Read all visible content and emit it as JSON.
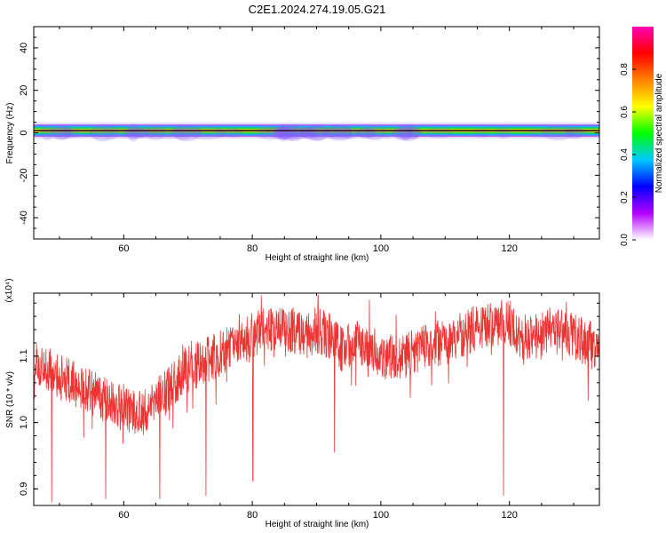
{
  "title": "C2E1.2024.274.19.05.G21",
  "chart_data": [
    {
      "type": "heatmap",
      "xlabel": "Height of straight line (km)",
      "ylabel": "Frequency (Hz)",
      "xlim": [
        46,
        134
      ],
      "ylim": [
        -50,
        50
      ],
      "xticks": [
        60,
        80,
        100,
        120
      ],
      "yticks": [
        40,
        20,
        0,
        -20,
        -40
      ],
      "band_center_hz": 0,
      "colorbar": {
        "label": "Normalized spectral amplitude",
        "range": [
          0,
          1
        ],
        "ticks": [
          "0.0",
          "0.2",
          "0.4",
          "0.6",
          "0.8"
        ],
        "colors": [
          "#ffffff",
          "#b400ff",
          "#0000ff",
          "#00c8ff",
          "#00ff00",
          "#ffff00",
          "#ff8000",
          "#ff0000",
          "#ff00b4"
        ]
      }
    },
    {
      "type": "line",
      "xlabel": "Height of straight line (km)",
      "ylabel": "SNR (10 * v/v)",
      "multiplier": "(x10⁴)",
      "xlim": [
        46,
        134
      ],
      "ylim": [
        0.875,
        1.195
      ],
      "xticks": [
        60,
        80,
        100,
        120
      ],
      "yticks": [
        "0.9",
        "1.0",
        "1.1"
      ],
      "color": "#ee3333",
      "series": [
        {
          "values": [
            [
              46,
              1.09
            ],
            [
              48,
              1.08
            ],
            [
              50,
              1.07
            ],
            [
              52,
              1.06
            ],
            [
              54,
              1.05
            ],
            [
              56,
              1.04
            ],
            [
              58,
              1.03
            ],
            [
              60,
              1.02
            ],
            [
              62,
              1.01
            ],
            [
              64,
              1.02
            ],
            [
              66,
              1.04
            ],
            [
              68,
              1.06
            ],
            [
              70,
              1.08
            ],
            [
              72,
              1.09
            ],
            [
              74,
              1.1
            ],
            [
              76,
              1.11
            ],
            [
              78,
              1.12
            ],
            [
              80,
              1.13
            ],
            [
              82,
              1.14
            ],
            [
              84,
              1.14
            ],
            [
              86,
              1.14
            ],
            [
              88,
              1.13
            ],
            [
              90,
              1.14
            ],
            [
              92,
              1.13
            ],
            [
              94,
              1.11
            ],
            [
              96,
              1.12
            ],
            [
              98,
              1.12
            ],
            [
              100,
              1.1
            ],
            [
              102,
              1.1
            ],
            [
              104,
              1.1
            ],
            [
              106,
              1.11
            ],
            [
              108,
              1.12
            ],
            [
              110,
              1.12
            ],
            [
              112,
              1.13
            ],
            [
              114,
              1.14
            ],
            [
              116,
              1.14
            ],
            [
              118,
              1.15
            ],
            [
              120,
              1.15
            ],
            [
              122,
              1.13
            ],
            [
              124,
              1.13
            ],
            [
              126,
              1.14
            ],
            [
              128,
              1.14
            ],
            [
              130,
              1.13
            ],
            [
              132,
              1.12
            ],
            [
              134,
              1.11
            ]
          ],
          "spikes_down": [
            [
              48.8,
              0.88
            ],
            [
              57.2,
              0.885
            ],
            [
              65.6,
              0.885
            ],
            [
              72.8,
              0.89
            ],
            [
              80.1,
              0.912
            ],
            [
              92.8,
              0.955
            ],
            [
              119.1,
              0.89
            ]
          ]
        }
      ]
    }
  ]
}
